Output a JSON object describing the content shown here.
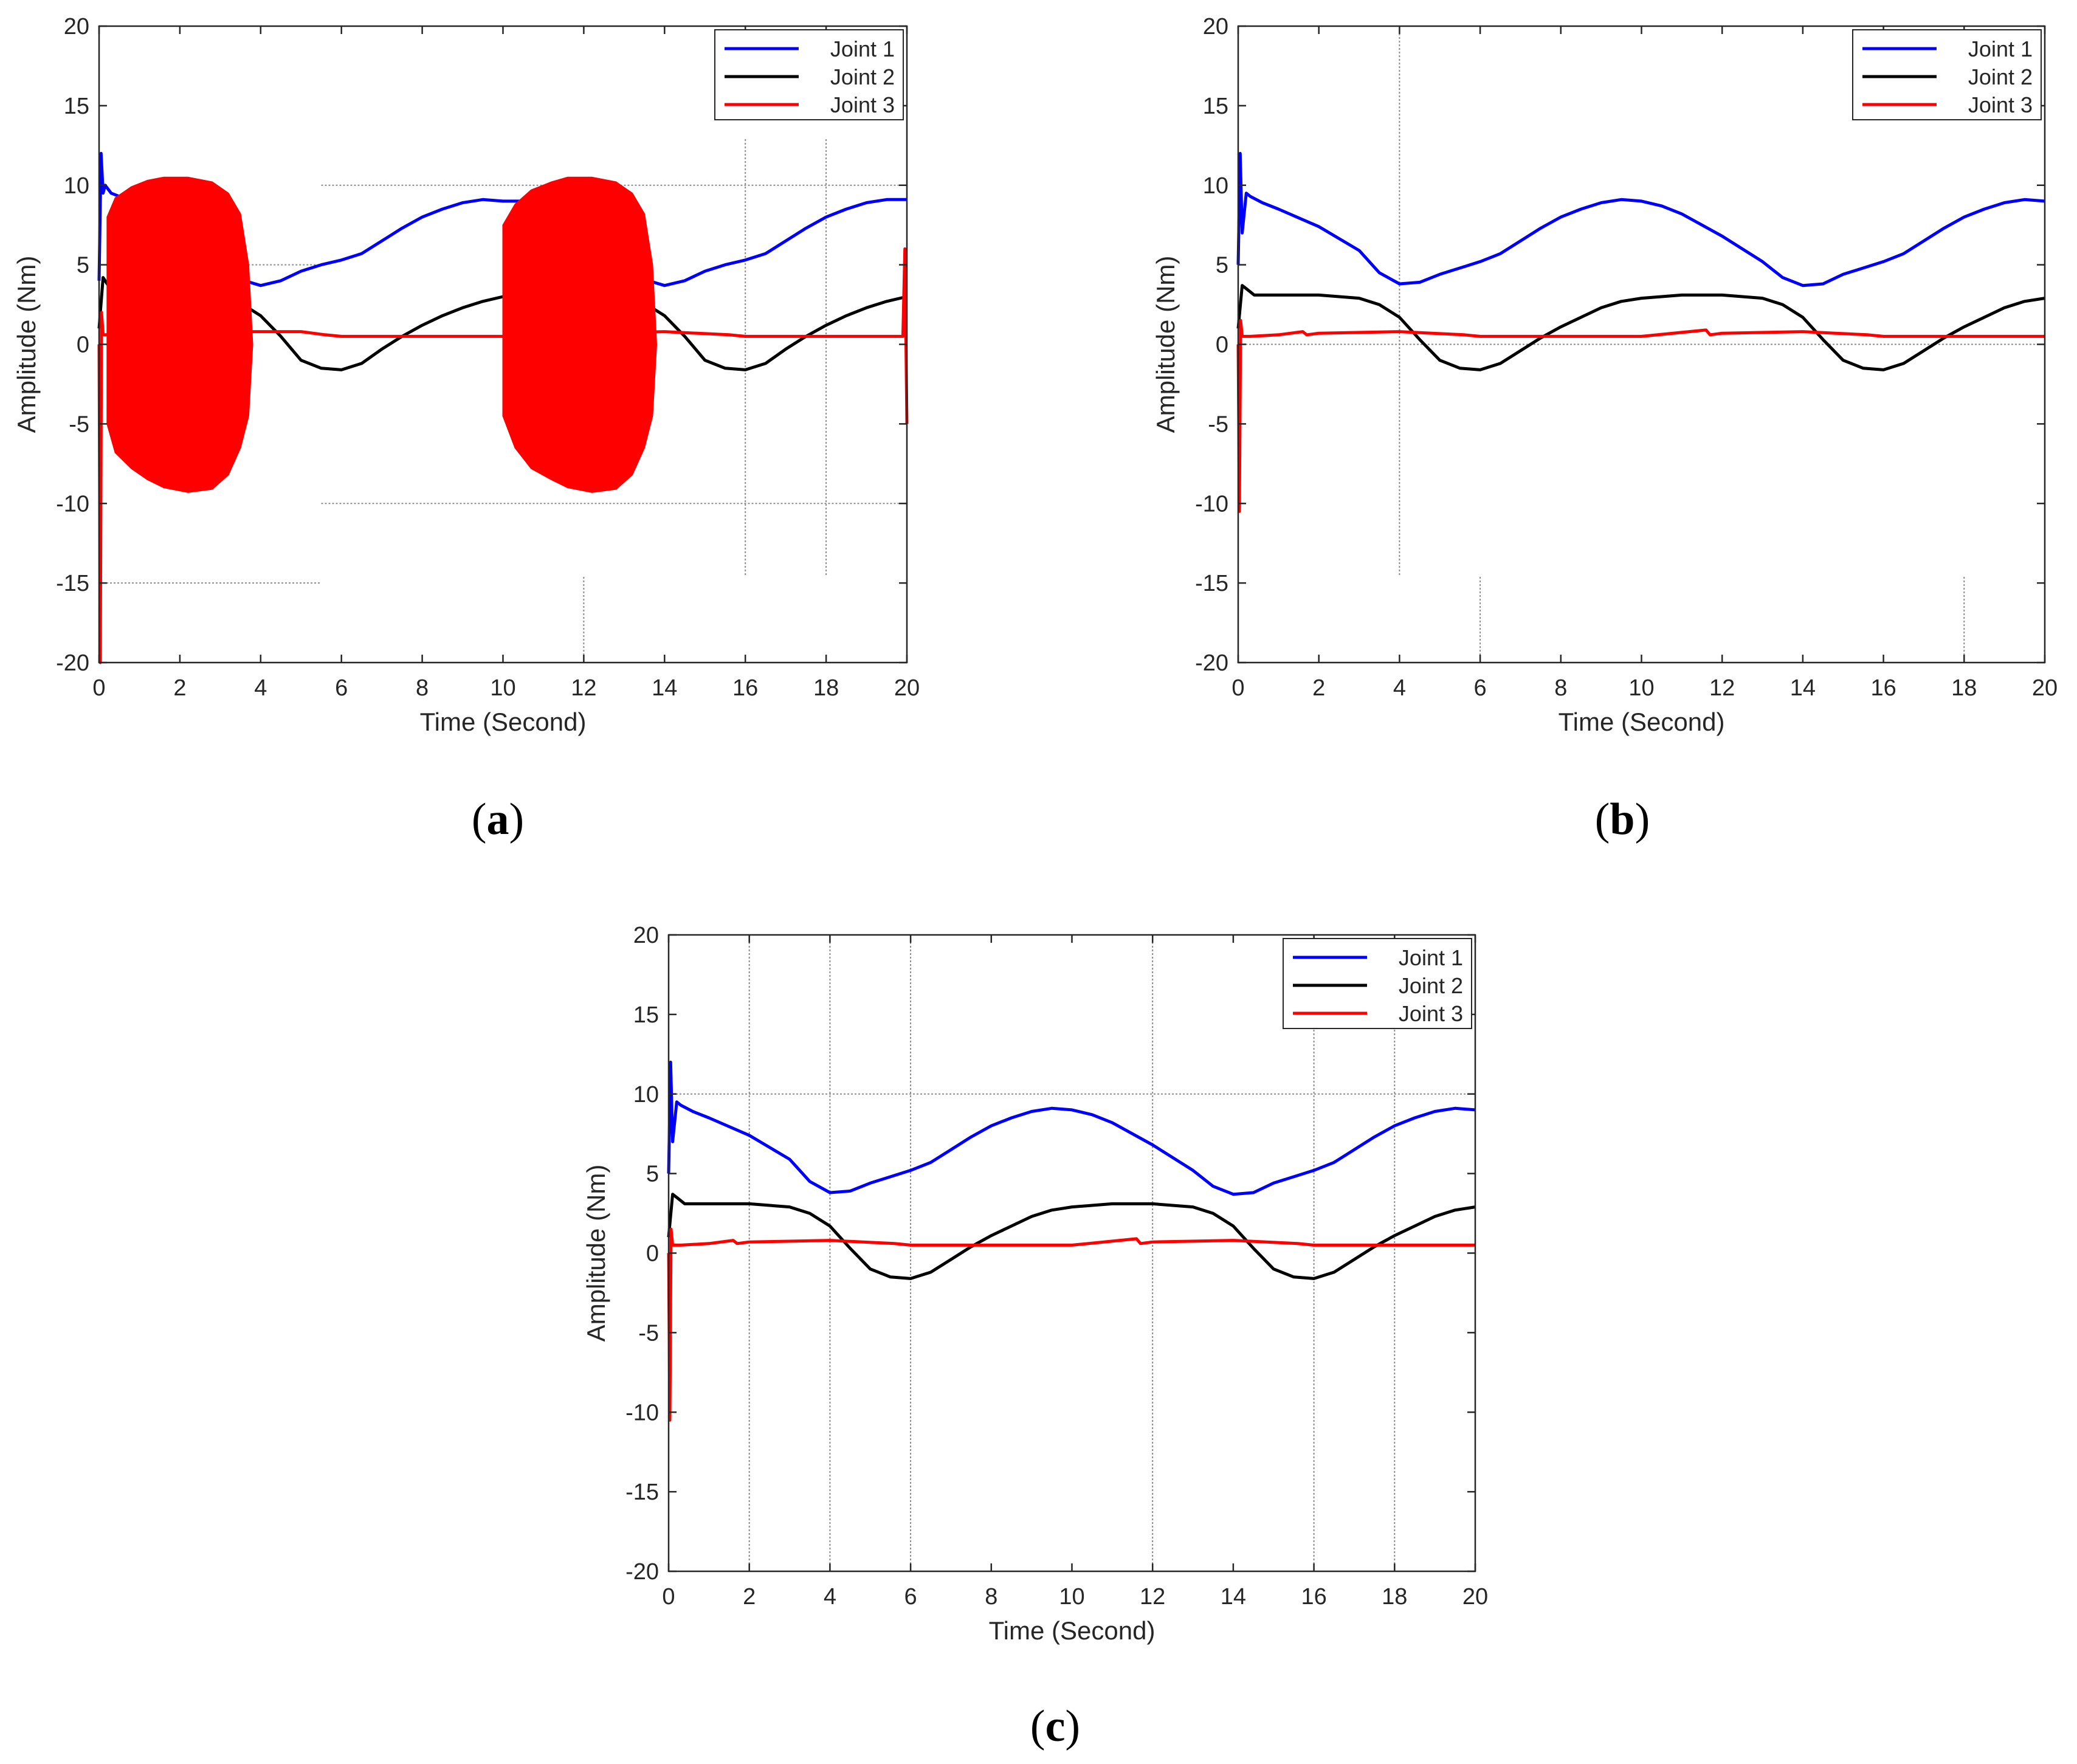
{
  "figure": {
    "panel_labels": [
      {
        "open": "(",
        "letter": "a",
        "close": ")"
      },
      {
        "open": "(",
        "letter": "b",
        "close": ")"
      },
      {
        "open": "(",
        "letter": "c",
        "close": ")"
      }
    ]
  },
  "colors": {
    "joint1": "#0000ff",
    "joint2": "#000000",
    "joint3": "#ff0000",
    "axis": "#262626",
    "grid": "#8c8c8c"
  },
  "chart_data": [
    {
      "id": "a",
      "type": "line",
      "xlabel": "Time (Second)",
      "ylabel": "Amplitude (Nm)",
      "xlim": [
        0,
        20
      ],
      "ylim": [
        -20,
        20
      ],
      "xticks": [
        0,
        2,
        4,
        6,
        8,
        10,
        12,
        14,
        16,
        18,
        20
      ],
      "yticks": [
        -20,
        -15,
        -10,
        -5,
        0,
        5,
        10,
        15,
        20
      ],
      "legend": {
        "position": "top-right",
        "entries": [
          "Joint 1",
          "Joint 2",
          "Joint 3"
        ]
      },
      "series": [
        {
          "name": "Joint 1",
          "color": "#0000ff",
          "x": [
            0,
            0.05,
            0.1,
            0.15,
            0.3,
            0.6,
            1.0,
            2,
            3,
            3.6,
            4,
            4.5,
            5,
            5.5,
            6,
            6.5,
            7,
            7.5,
            8,
            8.5,
            9,
            9.5,
            10,
            10.5,
            11,
            12,
            13,
            13.6,
            14,
            14.5,
            15,
            15.5,
            16,
            16.5,
            17,
            17.5,
            18,
            18.5,
            19,
            19.5,
            20
          ],
          "y": [
            4,
            12,
            9.5,
            10,
            9.5,
            9.2,
            9.0,
            7.5,
            5.2,
            4.0,
            3.7,
            4.0,
            4.6,
            5.0,
            5.3,
            5.7,
            6.5,
            7.3,
            8.0,
            8.5,
            8.9,
            9.1,
            9.0,
            9.0,
            8.5,
            7.0,
            5.0,
            4.0,
            3.7,
            4.0,
            4.6,
            5.0,
            5.3,
            5.7,
            6.5,
            7.3,
            8.0,
            8.5,
            8.9,
            9.1,
            9.1
          ]
        },
        {
          "name": "Joint 2",
          "color": "#000000",
          "x": [
            0,
            0.1,
            0.2,
            0.4,
            1,
            2,
            3,
            3.5,
            4,
            4.5,
            5,
            5.5,
            6,
            6.5,
            7,
            7.5,
            8,
            8.5,
            9,
            9.5,
            10,
            11,
            12,
            13,
            13.5,
            14,
            14.5,
            15,
            15.5,
            16,
            16.5,
            17,
            17.5,
            18,
            18.5,
            19,
            19.5,
            20
          ],
          "y": [
            1,
            4.2,
            3.8,
            3.1,
            3.1,
            3.1,
            3.0,
            2.6,
            1.8,
            0.5,
            -1.0,
            -1.5,
            -1.6,
            -1.2,
            -0.3,
            0.5,
            1.2,
            1.8,
            2.3,
            2.7,
            3.0,
            3.1,
            3.1,
            3.0,
            2.6,
            1.8,
            0.5,
            -1.0,
            -1.5,
            -1.6,
            -1.2,
            -0.3,
            0.5,
            1.2,
            1.8,
            2.3,
            2.7,
            3.0
          ]
        },
        {
          "name": "Joint 3",
          "color": "#ff0000",
          "x": [
            0,
            0.03,
            0.06,
            0.1,
            0.3,
            1,
            2,
            3,
            4,
            5,
            5.6,
            6,
            8,
            10,
            12,
            14,
            15.6,
            16,
            18,
            19.9,
            19.95,
            20
          ],
          "y": [
            0,
            -20,
            2,
            0.6,
            0.6,
            0.7,
            0.8,
            0.8,
            0.8,
            0.8,
            0.6,
            0.5,
            0.5,
            0.5,
            0.7,
            0.8,
            0.6,
            0.5,
            0.5,
            0.5,
            6,
            -5
          ]
        },
        {
          "name": "Joint 3 oscillation envelope 1",
          "color": "#ff0000",
          "fill": true,
          "x": [
            0.2,
            0.4,
            0.8,
            1.2,
            1.6,
            2.2,
            2.8,
            3.2,
            3.5,
            3.7,
            3.8,
            3.7,
            3.5,
            3.2,
            2.8,
            2.2,
            1.6,
            1.2,
            0.8,
            0.4,
            0.2
          ],
          "y": [
            8,
            9.2,
            9.9,
            10.3,
            10.5,
            10.5,
            10.2,
            9.5,
            8.2,
            5.0,
            0,
            -4.5,
            -6.5,
            -8.2,
            -9.1,
            -9.3,
            -9.0,
            -8.5,
            -7.8,
            -6.8,
            -5.0
          ]
        },
        {
          "name": "Joint 3 oscillation envelope 2",
          "color": "#ff0000",
          "fill": true,
          "x": [
            10.0,
            10.3,
            10.7,
            11.2,
            11.6,
            12.2,
            12.8,
            13.2,
            13.5,
            13.7,
            13.8,
            13.7,
            13.5,
            13.2,
            12.8,
            12.2,
            11.6,
            11.2,
            10.7,
            10.3,
            10.0
          ],
          "y": [
            7.5,
            8.8,
            9.7,
            10.2,
            10.5,
            10.5,
            10.2,
            9.5,
            8.2,
            5.0,
            0,
            -4.5,
            -6.5,
            -8.2,
            -9.1,
            -9.3,
            -9.0,
            -8.5,
            -7.8,
            -6.5,
            -4.5
          ]
        }
      ],
      "reference_lines": [
        {
          "axis": "y",
          "value": 10,
          "x_from": 5.5,
          "x_to": 20
        },
        {
          "axis": "y",
          "value": -10,
          "x_from": 5.5,
          "x_to": 20
        },
        {
          "axis": "y",
          "value": 5,
          "x_from": 3.6,
          "x_to": 5.5
        },
        {
          "axis": "y",
          "value": -15,
          "x_from": 0,
          "x_to": 5.5
        },
        {
          "axis": "x",
          "value": 12,
          "y_from": -20,
          "y_to": -14.5
        },
        {
          "axis": "x",
          "value": 16,
          "y_from": -14.5,
          "y_to": 13
        },
        {
          "axis": "x",
          "value": 18,
          "y_from": -14.5,
          "y_to": 13
        }
      ]
    },
    {
      "id": "b",
      "type": "line",
      "xlabel": "Time (Second)",
      "ylabel": "Amplitude (Nm)",
      "xlim": [
        0,
        20
      ],
      "ylim": [
        -20,
        20
      ],
      "xticks": [
        0,
        2,
        4,
        6,
        8,
        10,
        12,
        14,
        16,
        18,
        20
      ],
      "yticks": [
        -20,
        -15,
        -10,
        -5,
        0,
        5,
        10,
        15,
        20
      ],
      "legend": {
        "position": "top-right",
        "entries": [
          "Joint 1",
          "Joint 2",
          "Joint 3"
        ]
      },
      "series": [
        {
          "name": "Joint 1",
          "color": "#0000ff",
          "x": [
            0,
            0.05,
            0.1,
            0.2,
            0.3,
            0.6,
            1,
            2,
            3,
            3.5,
            4,
            4.5,
            5,
            5.5,
            6,
            6.5,
            7,
            7.5,
            8,
            8.5,
            9,
            9.5,
            10,
            10.5,
            11,
            12,
            13,
            13.5,
            14,
            14.5,
            15,
            15.5,
            16,
            16.5,
            17,
            17.5,
            18,
            18.5,
            19,
            19.5,
            20
          ],
          "y": [
            5,
            12,
            7,
            9.5,
            9.3,
            8.9,
            8.5,
            7.4,
            5.9,
            4.5,
            3.8,
            3.9,
            4.4,
            4.8,
            5.2,
            5.7,
            6.5,
            7.3,
            8.0,
            8.5,
            8.9,
            9.1,
            9.0,
            8.7,
            8.2,
            6.8,
            5.2,
            4.2,
            3.7,
            3.8,
            4.4,
            4.8,
            5.2,
            5.7,
            6.5,
            7.3,
            8.0,
            8.5,
            8.9,
            9.1,
            9.0
          ]
        },
        {
          "name": "Joint 2",
          "color": "#000000",
          "x": [
            0,
            0.1,
            0.2,
            0.4,
            1,
            2,
            3,
            3.5,
            4,
            4.5,
            5,
            5.5,
            6,
            6.5,
            7,
            7.5,
            8,
            8.5,
            9,
            9.5,
            10,
            11,
            12,
            13,
            13.5,
            14,
            14.5,
            15,
            15.5,
            16,
            16.5,
            17,
            17.5,
            18,
            18.5,
            19,
            19.5,
            20
          ],
          "y": [
            1,
            3.7,
            3.5,
            3.1,
            3.1,
            3.1,
            2.9,
            2.5,
            1.7,
            0.3,
            -1.0,
            -1.5,
            -1.6,
            -1.2,
            -0.4,
            0.4,
            1.1,
            1.7,
            2.3,
            2.7,
            2.9,
            3.1,
            3.1,
            2.9,
            2.5,
            1.7,
            0.3,
            -1.0,
            -1.5,
            -1.6,
            -1.2,
            -0.4,
            0.4,
            1.1,
            1.7,
            2.3,
            2.7,
            2.9
          ]
        },
        {
          "name": "Joint 3",
          "color": "#ff0000",
          "x": [
            0,
            0.03,
            0.06,
            0.1,
            0.3,
            1,
            1.6,
            1.7,
            2,
            4,
            5.6,
            6,
            8,
            10,
            11.6,
            11.7,
            12,
            14,
            15.6,
            16,
            18,
            20
          ],
          "y": [
            0,
            -10.5,
            1.5,
            0.5,
            0.5,
            0.6,
            0.8,
            0.6,
            0.7,
            0.8,
            0.6,
            0.5,
            0.5,
            0.5,
            0.9,
            0.6,
            0.7,
            0.8,
            0.6,
            0.5,
            0.5,
            0.5
          ]
        }
      ],
      "reference_lines": [
        {
          "axis": "y",
          "value": 0,
          "x_from": 0,
          "x_to": 20
        },
        {
          "axis": "x",
          "value": 4,
          "y_from": -14.5,
          "y_to": 20
        },
        {
          "axis": "x",
          "value": 6,
          "y_from": -20,
          "y_to": -14.5
        },
        {
          "axis": "x",
          "value": 18,
          "y_from": -20,
          "y_to": -14.5
        }
      ]
    },
    {
      "id": "c",
      "type": "line",
      "xlabel": "Time (Second)",
      "ylabel": "Amplitude (Nm)",
      "xlim": [
        0,
        20
      ],
      "ylim": [
        -20,
        20
      ],
      "xticks": [
        0,
        2,
        4,
        6,
        8,
        10,
        12,
        14,
        16,
        18,
        20
      ],
      "yticks": [
        -20,
        -15,
        -10,
        -5,
        0,
        5,
        10,
        15,
        20
      ],
      "legend": {
        "position": "top-right",
        "entries": [
          "Joint 1",
          "Joint 2",
          "Joint 3"
        ]
      },
      "series": [
        {
          "name": "Joint 1",
          "color": "#0000ff",
          "x": [
            0,
            0.05,
            0.1,
            0.2,
            0.3,
            0.6,
            1,
            2,
            3,
            3.5,
            4,
            4.5,
            5,
            5.5,
            6,
            6.5,
            7,
            7.5,
            8,
            8.5,
            9,
            9.5,
            10,
            10.5,
            11,
            12,
            13,
            13.5,
            14,
            14.5,
            15,
            15.5,
            16,
            16.5,
            17,
            17.5,
            18,
            18.5,
            19,
            19.5,
            20
          ],
          "y": [
            5,
            12,
            7,
            9.5,
            9.3,
            8.9,
            8.5,
            7.4,
            5.9,
            4.5,
            3.8,
            3.9,
            4.4,
            4.8,
            5.2,
            5.7,
            6.5,
            7.3,
            8.0,
            8.5,
            8.9,
            9.1,
            9.0,
            8.7,
            8.2,
            6.8,
            5.2,
            4.2,
            3.7,
            3.8,
            4.4,
            4.8,
            5.2,
            5.7,
            6.5,
            7.3,
            8.0,
            8.5,
            8.9,
            9.1,
            9.0
          ]
        },
        {
          "name": "Joint 2",
          "color": "#000000",
          "x": [
            0,
            0.1,
            0.2,
            0.4,
            1,
            2,
            3,
            3.5,
            4,
            4.5,
            5,
            5.5,
            6,
            6.5,
            7,
            7.5,
            8,
            8.5,
            9,
            9.5,
            10,
            11,
            12,
            13,
            13.5,
            14,
            14.5,
            15,
            15.5,
            16,
            16.5,
            17,
            17.5,
            18,
            18.5,
            19,
            19.5,
            20
          ],
          "y": [
            1,
            3.7,
            3.5,
            3.1,
            3.1,
            3.1,
            2.9,
            2.5,
            1.7,
            0.3,
            -1.0,
            -1.5,
            -1.6,
            -1.2,
            -0.4,
            0.4,
            1.1,
            1.7,
            2.3,
            2.7,
            2.9,
            3.1,
            3.1,
            2.9,
            2.5,
            1.7,
            0.3,
            -1.0,
            -1.5,
            -1.6,
            -1.2,
            -0.4,
            0.4,
            1.1,
            1.7,
            2.3,
            2.7,
            2.9
          ]
        },
        {
          "name": "Joint 3",
          "color": "#ff0000",
          "x": [
            0,
            0.03,
            0.06,
            0.1,
            0.3,
            1,
            1.6,
            1.7,
            2,
            4,
            5.6,
            6,
            8,
            10,
            11.6,
            11.7,
            12,
            14,
            15.6,
            16,
            18,
            20
          ],
          "y": [
            0,
            -10.5,
            1.5,
            0.5,
            0.5,
            0.6,
            0.8,
            0.6,
            0.7,
            0.8,
            0.6,
            0.5,
            0.5,
            0.5,
            0.9,
            0.6,
            0.7,
            0.8,
            0.6,
            0.5,
            0.5,
            0.5
          ]
        }
      ],
      "reference_lines": [
        {
          "axis": "y",
          "value": 10,
          "x_from": 0,
          "x_to": 20
        },
        {
          "axis": "x",
          "value": 2,
          "y_from": -20,
          "y_to": 20
        },
        {
          "axis": "x",
          "value": 4,
          "y_from": -20,
          "y_to": 20
        },
        {
          "axis": "x",
          "value": 6,
          "y_from": -20,
          "y_to": 20
        },
        {
          "axis": "x",
          "value": 12,
          "y_from": -20,
          "y_to": 20
        },
        {
          "axis": "x",
          "value": 16,
          "y_from": -20,
          "y_to": 20
        },
        {
          "axis": "x",
          "value": 18,
          "y_from": -20,
          "y_to": 20
        }
      ]
    }
  ]
}
